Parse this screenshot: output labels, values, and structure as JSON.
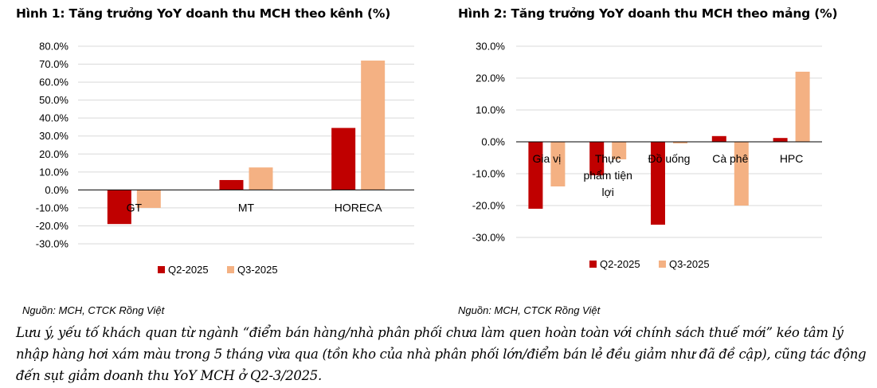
{
  "figures": {
    "fig1": {
      "title": "Hình 1: Tăng trưởng YoY doanh thu MCH theo kênh (%)",
      "source": "Nguồn: MCH, CTCK Rồng Việt"
    },
    "fig2": {
      "title": "Hình 2: Tăng trưởng YoY doanh thu MCH theo mảng (%)",
      "source": "Nguồn: MCH, CTCK Rồng Việt"
    }
  },
  "note": "Lưu ý, yếu tố khách quan từ ngành “điểm bán hàng/nhà phân phối chưa làm quen hoàn toàn với chính sách thuế mới” kéo tâm lý nhập hàng hơi xám màu trong 5 tháng vừa qua (tồn kho của nhà phân phối lớn/điểm bán lẻ đều giảm như đã đề cập), cũng tác động đến sụt giảm doanh thu YoY MCH ở Q2-3/2025.",
  "colors": {
    "q2": "#C00000",
    "q3": "#F4B183",
    "grid": "#D9D9D9",
    "axis": "#000000"
  },
  "chart_data": [
    {
      "type": "bar",
      "title": "Hình 1: Tăng trưởng YoY doanh thu MCH theo kênh (%)",
      "categories": [
        "GT",
        "MT",
        "HORECA"
      ],
      "series": [
        {
          "name": "Q2-2025",
          "values": [
            -19.0,
            5.5,
            34.5
          ]
        },
        {
          "name": "Q3-2025",
          "values": [
            -10.0,
            12.5,
            72.0
          ]
        }
      ],
      "ylim": [
        -30,
        80
      ],
      "yticks": [
        80,
        70,
        60,
        50,
        40,
        30,
        20,
        10,
        0,
        -10,
        -20,
        -30
      ],
      "tick_labels": [
        "80.0%",
        "70.0%",
        "60.0%",
        "50.0%",
        "40.0%",
        "30.0%",
        "20.0%",
        "10.0%",
        "0.0%",
        "-10.0%",
        "-20.0%",
        "-30.0%"
      ],
      "grid": true,
      "legend": "bottom"
    },
    {
      "type": "bar",
      "title": "Hình 2: Tăng trưởng YoY doanh thu MCH theo mảng (%)",
      "categories": [
        "Gia vị",
        "Thực phẩm tiện lợi",
        "Đồ uống",
        "Cà phê",
        "HPC"
      ],
      "category_lines": [
        [
          "Gia vị"
        ],
        [
          "Thực",
          "phẩm tiện",
          "lợi"
        ],
        [
          "Đồ uống"
        ],
        [
          "Cà phê"
        ],
        [
          "HPC"
        ]
      ],
      "series": [
        {
          "name": "Q2-2025",
          "values": [
            -21.0,
            -10.5,
            -26.0,
            1.8,
            1.2
          ]
        },
        {
          "name": "Q3-2025",
          "values": [
            -14.0,
            -5.5,
            -0.5,
            -20.0,
            22.0
          ]
        }
      ],
      "ylim": [
        -30,
        30
      ],
      "yticks": [
        30,
        20,
        10,
        0,
        -10,
        -20,
        -30
      ],
      "tick_labels": [
        "30.0%",
        "20.0%",
        "10.0%",
        "0.0%",
        "-10.0%",
        "-20.0%",
        "-30.0%"
      ],
      "grid": true,
      "legend": "bottom"
    }
  ]
}
